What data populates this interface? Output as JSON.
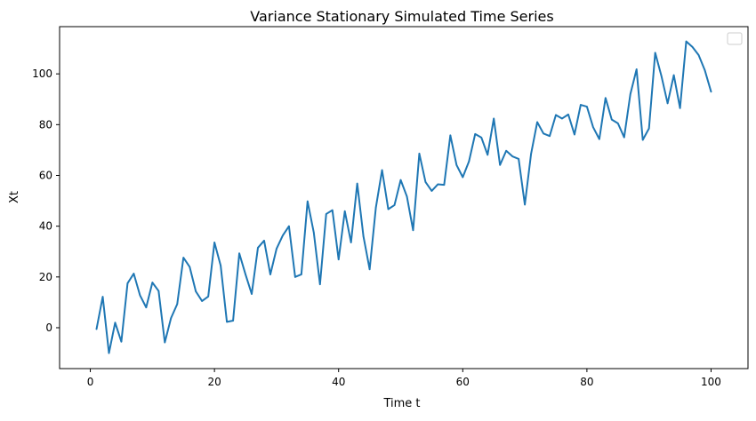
{
  "chart_data": {
    "type": "line",
    "title": "Variance Stationary Simulated Time Series",
    "xlabel": "Time t",
    "ylabel": "Xt",
    "xlim": [
      -4.95,
      105.95
    ],
    "ylim": [
      -16.1,
      118.6
    ],
    "xticks": [
      0,
      20,
      40,
      60,
      80,
      100
    ],
    "yticks": [
      0,
      20,
      40,
      60,
      80,
      100
    ],
    "grid": false,
    "legend": "top-right (empty)",
    "line_color": "#1f77b4",
    "series": [
      {
        "x": [
          1,
          2,
          3,
          4,
          5,
          6,
          7,
          8,
          9,
          10,
          11,
          12,
          13,
          14,
          15,
          16,
          17,
          18,
          19,
          20,
          21,
          22,
          23,
          24,
          25,
          26,
          27,
          28,
          29,
          30,
          31,
          32,
          33,
          34,
          35,
          36,
          37,
          38,
          39,
          40,
          41,
          42,
          43,
          44,
          45,
          46,
          47,
          48,
          49,
          50,
          51,
          52,
          53,
          54,
          55,
          56,
          57,
          58,
          59,
          60,
          61,
          62,
          63,
          64,
          65,
          66,
          67,
          68,
          69,
          70,
          71,
          72,
          73,
          74,
          75,
          76,
          77,
          78,
          79,
          80,
          81,
          82,
          83,
          84,
          85,
          86,
          87,
          88,
          89,
          90,
          91,
          92,
          93,
          94,
          95,
          96,
          97,
          98,
          99,
          100
        ],
        "values": [
          -0.5,
          12.2,
          -10,
          2,
          -5.5,
          17.5,
          21.3,
          12.8,
          8,
          17.8,
          14.5,
          -5.8,
          3.8,
          9.3,
          27.6,
          24,
          14.3,
          10.5,
          12.3,
          33.6,
          24.5,
          2.3,
          2.8,
          29.3,
          21,
          13.3,
          31.5,
          34.3,
          21,
          31.1,
          36.3,
          40,
          20,
          21,
          49.8,
          37.5,
          17.1,
          44.8,
          46.3,
          26.9,
          45.9,
          33.6,
          56.8,
          36,
          23,
          47.3,
          62.1,
          46.7,
          48.3,
          58.2,
          51.7,
          38.4,
          68.6,
          57.4,
          53.9,
          56.5,
          56.3,
          75.8,
          64.1,
          59.3,
          65.5,
          76.3,
          74.9,
          68.1,
          82.4,
          64.1,
          69.7,
          67.5,
          66.5,
          48.5,
          68.4,
          81,
          76.5,
          75.5,
          83.8,
          82.4,
          84,
          76.1,
          87.8,
          87.1,
          79,
          74.3,
          90.5,
          82,
          80.5,
          75,
          92,
          101.8,
          74,
          78.5,
          108.3,
          99.2,
          88.4,
          99.5,
          86.5,
          112.8,
          110.6,
          107.4,
          101.4,
          93
        ]
      }
    ]
  }
}
